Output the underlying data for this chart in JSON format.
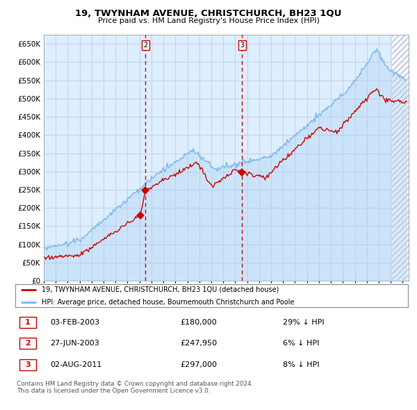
{
  "title": "19, TWYNHAM AVENUE, CHRISTCHURCH, BH23 1QU",
  "subtitle": "Price paid vs. HM Land Registry's House Price Index (HPI)",
  "ylim": [
    0,
    675000
  ],
  "yticks": [
    0,
    50000,
    100000,
    150000,
    200000,
    250000,
    300000,
    350000,
    400000,
    450000,
    500000,
    550000,
    600000,
    650000
  ],
  "xlim_start": 1995.0,
  "xlim_end": 2025.5,
  "bg_color": "#ddeeff",
  "grid_color": "#c0d0e8",
  "hpi_color": "#7ab8e8",
  "hpi_fill_color": "#aad0f0",
  "price_color": "#cc0000",
  "sale1_year": 2003.09,
  "sale1_price": 180000,
  "sale2_year": 2003.49,
  "sale2_price": 247950,
  "sale3_year": 2011.58,
  "sale3_price": 297000,
  "hatch_start": 2024.08,
  "legend_house": "19, TWYNHAM AVENUE, CHRISTCHURCH, BH23 1QU (detached house)",
  "legend_hpi": "HPI: Average price, detached house, Bournemouth Christchurch and Poole",
  "table_rows": [
    {
      "num": "1",
      "date": "03-FEB-2003",
      "price": "£180,000",
      "hpi": "29% ↓ HPI"
    },
    {
      "num": "2",
      "date": "27-JUN-2003",
      "price": "£247,950",
      "hpi": "6% ↓ HPI"
    },
    {
      "num": "3",
      "date": "02-AUG-2011",
      "price": "£297,000",
      "hpi": "8% ↓ HPI"
    }
  ],
  "footer": "Contains HM Land Registry data © Crown copyright and database right 2024.\nThis data is licensed under the Open Government Licence v3.0."
}
